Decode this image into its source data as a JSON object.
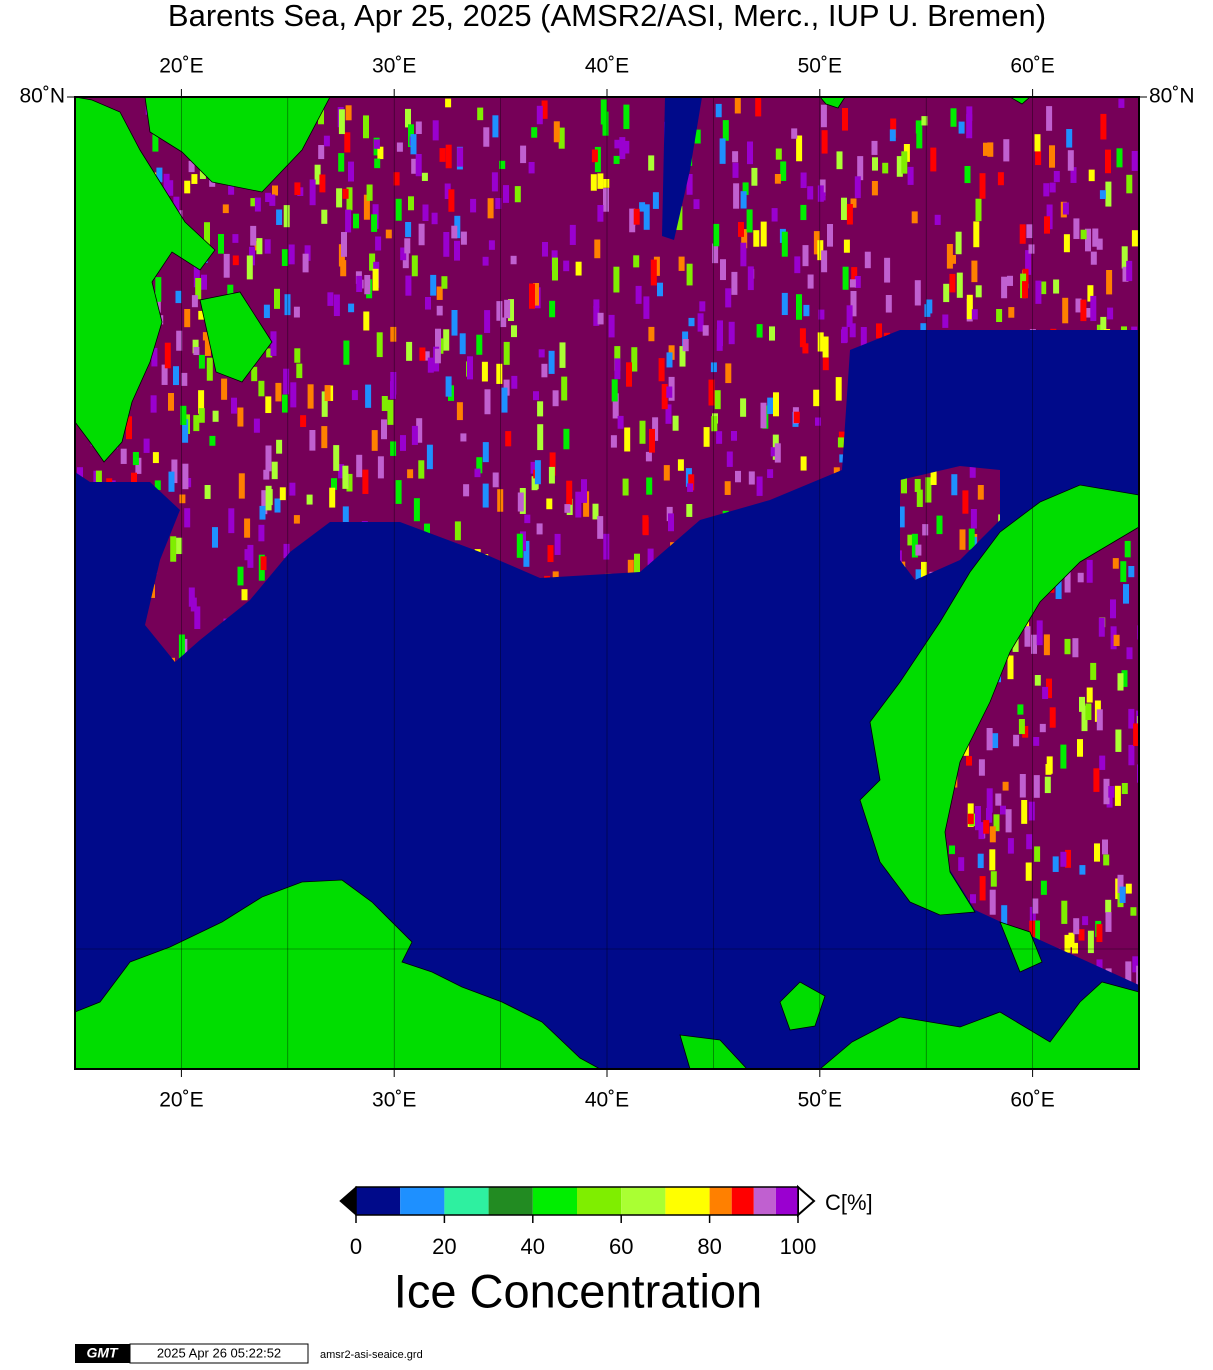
{
  "title": "Barents Sea, Apr 25, 2025 (AMSR2/ASI, Merc., IUP U. Bremen)",
  "map": {
    "lonlim": [
      15,
      65
    ],
    "lon_ticks": [
      {
        "value": 20,
        "label": "20˚E"
      },
      {
        "value": 30,
        "label": "30˚E"
      },
      {
        "value": 40,
        "label": "40˚E"
      },
      {
        "value": 50,
        "label": "50˚E"
      },
      {
        "value": 60,
        "label": "60˚E"
      }
    ],
    "lat_ticks": [
      {
        "value": 80,
        "label": "80˚N"
      }
    ]
  },
  "colorbar": {
    "bounds": [
      0,
      10,
      20,
      30,
      40,
      50,
      60,
      70,
      80,
      85,
      90,
      95,
      100
    ],
    "colors": [
      "#000a8a",
      "#1e90ff",
      "#2ef0a0",
      "#228b22",
      "#00ee00",
      "#7fee00",
      "#aaff33",
      "#ffff00",
      "#ff8000",
      "#ff0000",
      "#c060d0",
      "#9a00d0"
    ],
    "ticks": [
      0,
      20,
      40,
      60,
      80,
      100
    ],
    "unit": "C[%]",
    "title": "Ice Concentration"
  },
  "footer": {
    "logo": "GMT",
    "timestamp": "2025 Apr 26 05:22:52",
    "file": "amsr2-asi-seaice.grd"
  }
}
